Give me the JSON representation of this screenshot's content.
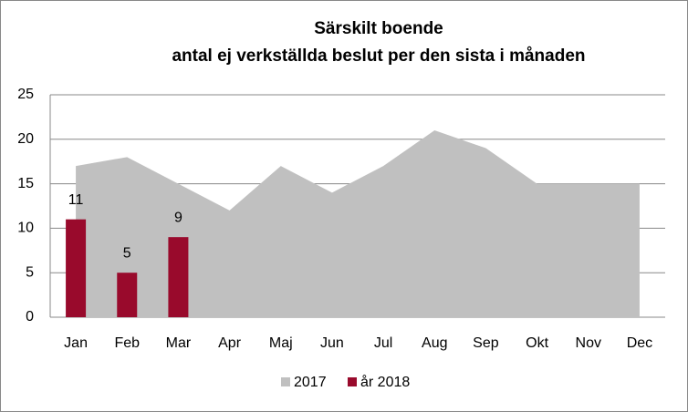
{
  "chart_data": {
    "type": "combo",
    "title": [
      "Särskilt boende",
      "antal ej verkställda beslut per den sista i månaden"
    ],
    "categories": [
      "Jan",
      "Feb",
      "Mar",
      "Apr",
      "Maj",
      "Jun",
      "Jul",
      "Aug",
      "Sep",
      "Okt",
      "Nov",
      "Dec"
    ],
    "series": [
      {
        "name": "2017",
        "type": "area",
        "color": "#c0c0c0",
        "values": [
          17,
          18,
          15,
          12,
          17,
          14,
          17,
          21,
          19,
          15,
          15,
          15
        ]
      },
      {
        "name": "år 2018",
        "type": "bar",
        "color": "#990a2c",
        "values": [
          11,
          5,
          9,
          null,
          null,
          null,
          null,
          null,
          null,
          null,
          null,
          null
        ],
        "data_labels": true
      }
    ],
    "ylim": [
      0,
      25
    ],
    "yticks": [
      0,
      5,
      10,
      15,
      20,
      25
    ],
    "grid": true,
    "legend": "bottom"
  }
}
